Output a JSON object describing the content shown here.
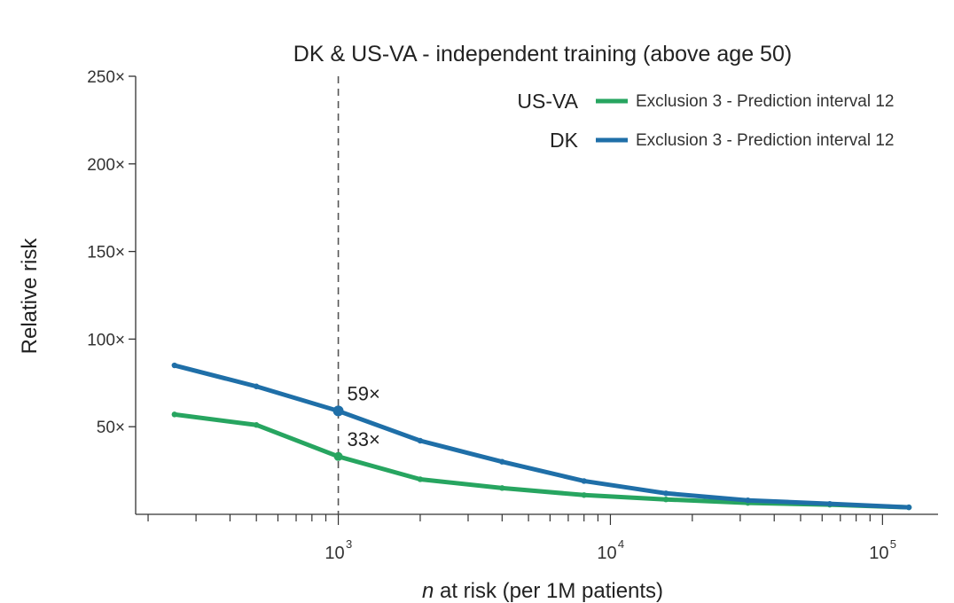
{
  "chart_data": {
    "type": "line",
    "title": "DK & US-VA - independent training (above age 50)",
    "xlabel_italic": "n",
    "xlabel_rest": " at risk (per 1M patients)",
    "ylabel": "Relative risk",
    "x_scale": "log",
    "xlim": [
      180,
      160000
    ],
    "ylim": [
      0,
      250
    ],
    "yticks": [
      50,
      100,
      150,
      200,
      250
    ],
    "ytick_labels": [
      "50×",
      "100×",
      "150×",
      "200×",
      "250×"
    ],
    "xticks": [
      {
        "value": 1000,
        "base": "10",
        "exp": "3"
      },
      {
        "value": 10000,
        "base": "10",
        "exp": "4"
      },
      {
        "value": 100000,
        "base": "10",
        "exp": "5"
      }
    ],
    "reference_line_x": 1000,
    "series": [
      {
        "name": "DK",
        "legend_entry": "Exclusion 3 - Prediction interval 12",
        "color": "#1f6fa8",
        "x": [
          250,
          500,
          1000,
          2000,
          4000,
          8000,
          16000,
          32000,
          64000,
          125000
        ],
        "y": [
          85,
          73,
          59,
          42,
          30,
          19,
          12,
          8,
          6,
          4
        ]
      },
      {
        "name": "US-VA",
        "legend_entry": "Exclusion 3 - Prediction interval 12",
        "color": "#27a560",
        "x": [
          250,
          500,
          1000,
          2000,
          4000,
          8000,
          16000,
          32000,
          64000,
          125000
        ],
        "y": [
          57,
          51,
          33,
          20,
          15,
          11,
          8.5,
          6.5,
          5.5,
          4
        ]
      }
    ],
    "annotations": [
      {
        "series": "DK",
        "x": 1000,
        "y": 59,
        "text": "59×"
      },
      {
        "series": "US-VA",
        "x": 1000,
        "y": 33,
        "text": "33×"
      }
    ],
    "legend_position": "top-right"
  }
}
